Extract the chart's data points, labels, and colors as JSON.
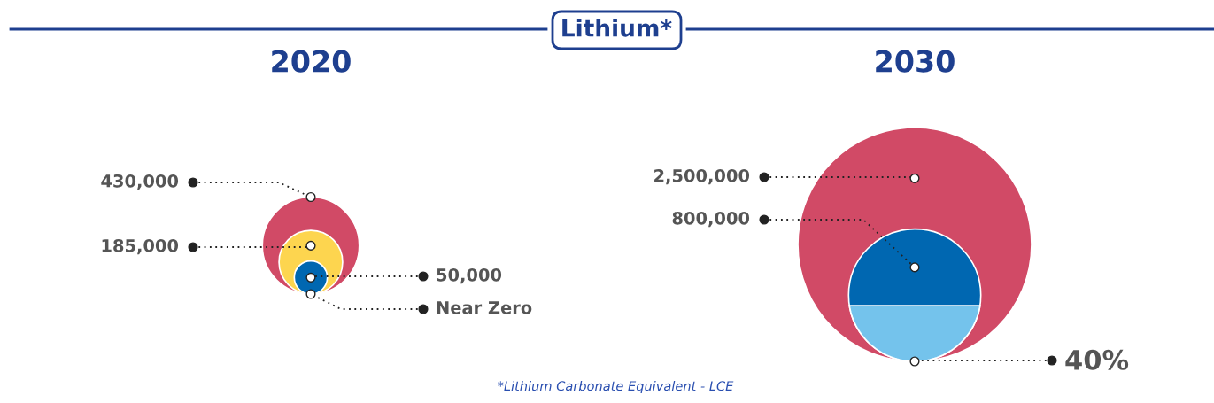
{
  "chart_data": [
    {
      "type": "other",
      "title": "Lithium*",
      "subtitle": "2020",
      "categories": [
        null,
        null,
        null,
        null
      ],
      "values": [
        430000,
        185000,
        50000,
        0
      ],
      "value_labels": [
        "430,000",
        "185,000",
        "50,000",
        "Near Zero"
      ],
      "colors": [
        "#d14a66",
        "#fdd54f",
        "#0067b1",
        "#0067b1"
      ]
    },
    {
      "type": "other",
      "subtitle": "2030",
      "categories": [
        null,
        null,
        null
      ],
      "values": [
        2500000,
        800000,
        40
      ],
      "value_labels": [
        "2,500,000",
        "800,000",
        "40%"
      ],
      "colors": [
        "#d14a66",
        "#0067b1",
        "#74c3ec"
      ],
      "annotations": [
        "*Lithium Carbonate Equivalent - LCE"
      ]
    }
  ]
}
